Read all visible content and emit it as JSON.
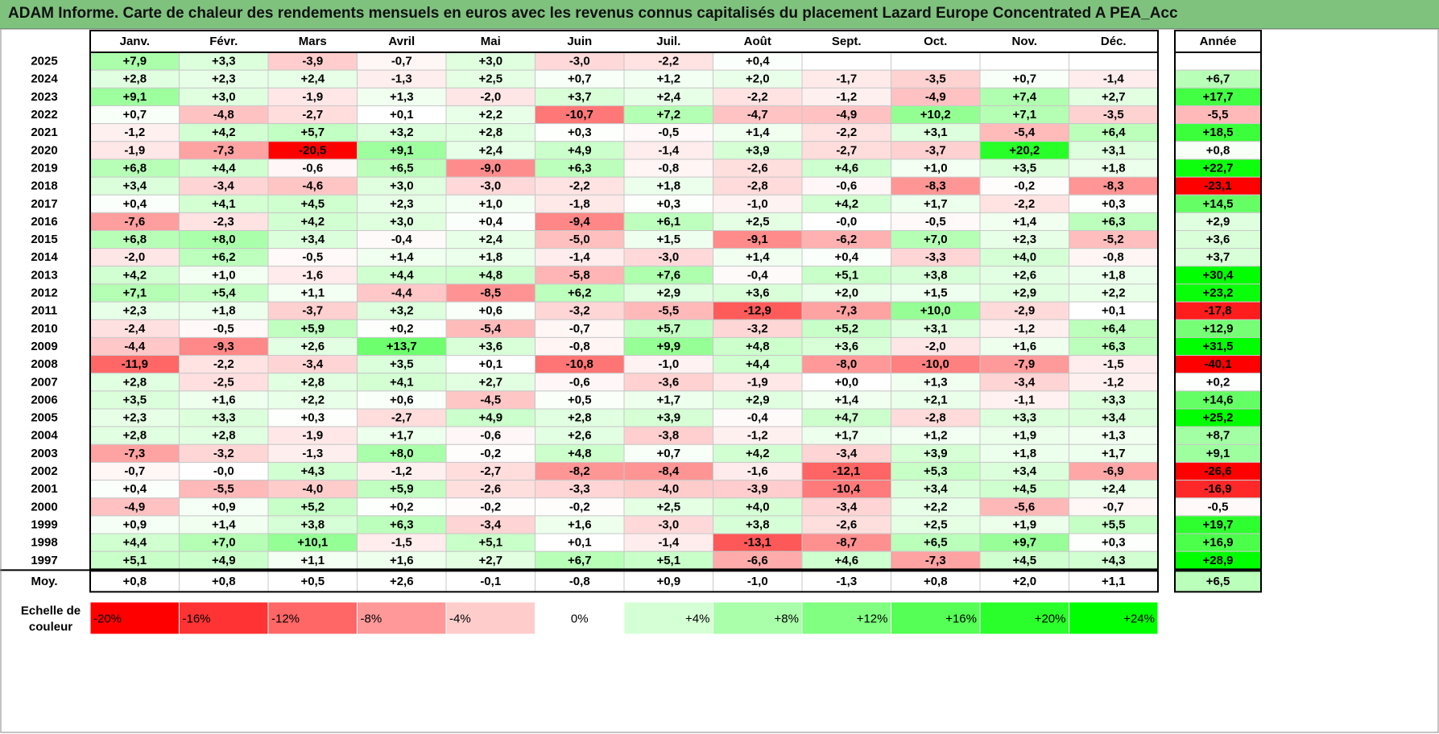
{
  "title": "ADAM Informe. Carte de chaleur des rendements mensuels en euros avec les revenus connus capitalisés du placement Lazard Europe Concentrated A PEA_Acc",
  "chart_data": {
    "type": "heatmap",
    "title": "ADAM Informe. Carte de chaleur des rendements mensuels en euros avec les revenus connus capitalisés du placement Lazard Europe Concentrated A PEA_Acc",
    "columns": [
      "Janv.",
      "Févr.",
      "Mars",
      "Avril",
      "Mai",
      "Juin",
      "Juil.",
      "Août",
      "Sept.",
      "Oct.",
      "Nov.",
      "Déc."
    ],
    "year_header": "Année",
    "rows": [
      {
        "year": "2025",
        "values": [
          "+7,9",
          "+3,3",
          "-3,9",
          "-0,7",
          "+3,0",
          "-3,0",
          "-2,2",
          "+0,4",
          "",
          "",
          "",
          ""
        ],
        "annual": ""
      },
      {
        "year": "2024",
        "values": [
          "+2,8",
          "+2,3",
          "+2,4",
          "-1,3",
          "+2,5",
          "+0,7",
          "+1,2",
          "+2,0",
          "-1,7",
          "-3,5",
          "+0,7",
          "-1,4"
        ],
        "annual": "+6,7"
      },
      {
        "year": "2023",
        "values": [
          "+9,1",
          "+3,0",
          "-1,9",
          "+1,3",
          "-2,0",
          "+3,7",
          "+2,4",
          "-2,2",
          "-1,2",
          "-4,9",
          "+7,4",
          "+2,7"
        ],
        "annual": "+17,7"
      },
      {
        "year": "2022",
        "values": [
          "+0,7",
          "-4,8",
          "-2,7",
          "+0,1",
          "+2,2",
          "-10,7",
          "+7,2",
          "-4,7",
          "-4,9",
          "+10,2",
          "+7,1",
          "-3,5"
        ],
        "annual": "-5,5"
      },
      {
        "year": "2021",
        "values": [
          "-1,2",
          "+4,2",
          "+5,7",
          "+3,2",
          "+2,8",
          "+0,3",
          "-0,5",
          "+1,4",
          "-2,2",
          "+3,1",
          "-5,4",
          "+6,4"
        ],
        "annual": "+18,5"
      },
      {
        "year": "2020",
        "values": [
          "-1,9",
          "-7,3",
          "-20,5",
          "+9,1",
          "+2,4",
          "+4,9",
          "-1,4",
          "+3,9",
          "-2,7",
          "-3,7",
          "+20,2",
          "+3,1"
        ],
        "annual": "+0,8"
      },
      {
        "year": "2019",
        "values": [
          "+6,8",
          "+4,4",
          "-0,6",
          "+6,5",
          "-9,0",
          "+6,3",
          "-0,8",
          "-2,6",
          "+4,6",
          "+1,0",
          "+3,5",
          "+1,8"
        ],
        "annual": "+22,7"
      },
      {
        "year": "2018",
        "values": [
          "+3,4",
          "-3,4",
          "-4,6",
          "+3,0",
          "-3,0",
          "-2,2",
          "+1,8",
          "-2,8",
          "-0,6",
          "-8,3",
          "-0,2",
          "-8,3"
        ],
        "annual": "-23,1"
      },
      {
        "year": "2017",
        "values": [
          "+0,4",
          "+4,1",
          "+4,5",
          "+2,3",
          "+1,0",
          "-1,8",
          "+0,3",
          "-1,0",
          "+4,2",
          "+1,7",
          "-2,2",
          "+0,3"
        ],
        "annual": "+14,5"
      },
      {
        "year": "2016",
        "values": [
          "-7,6",
          "-2,3",
          "+4,2",
          "+3,0",
          "+0,4",
          "-9,4",
          "+6,1",
          "+2,5",
          "-0,0",
          "-0,5",
          "+1,4",
          "+6,3"
        ],
        "annual": "+2,9"
      },
      {
        "year": "2015",
        "values": [
          "+6,8",
          "+8,0",
          "+3,4",
          "-0,4",
          "+2,4",
          "-5,0",
          "+1,5",
          "-9,1",
          "-6,2",
          "+7,0",
          "+2,3",
          "-5,2"
        ],
        "annual": "+3,6"
      },
      {
        "year": "2014",
        "values": [
          "-2,0",
          "+6,2",
          "-0,5",
          "+1,4",
          "+1,8",
          "-1,4",
          "-3,0",
          "+1,4",
          "+0,4",
          "-3,3",
          "+4,0",
          "-0,8"
        ],
        "annual": "+3,7"
      },
      {
        "year": "2013",
        "values": [
          "+4,2",
          "+1,0",
          "-1,6",
          "+4,4",
          "+4,8",
          "-5,8",
          "+7,6",
          "-0,4",
          "+5,1",
          "+3,8",
          "+2,6",
          "+1,8"
        ],
        "annual": "+30,4"
      },
      {
        "year": "2012",
        "values": [
          "+7,1",
          "+5,4",
          "+1,1",
          "-4,4",
          "-8,5",
          "+6,2",
          "+2,9",
          "+3,6",
          "+2,0",
          "+1,5",
          "+2,9",
          "+2,2"
        ],
        "annual": "+23,2"
      },
      {
        "year": "2011",
        "values": [
          "+2,3",
          "+1,8",
          "-3,7",
          "+3,2",
          "+0,6",
          "-3,2",
          "-5,5",
          "-12,9",
          "-7,3",
          "+10,0",
          "-2,9",
          "+0,1"
        ],
        "annual": "-17,8"
      },
      {
        "year": "2010",
        "values": [
          "-2,4",
          "-0,5",
          "+5,9",
          "+0,2",
          "-5,4",
          "-0,7",
          "+5,7",
          "-3,2",
          "+5,2",
          "+3,1",
          "-1,2",
          "+6,4"
        ],
        "annual": "+12,9"
      },
      {
        "year": "2009",
        "values": [
          "-4,4",
          "-9,3",
          "+2,6",
          "+13,7",
          "+3,6",
          "-0,8",
          "+9,9",
          "+4,8",
          "+3,6",
          "-2,0",
          "+1,6",
          "+6,3"
        ],
        "annual": "+31,5"
      },
      {
        "year": "2008",
        "values": [
          "-11,9",
          "-2,2",
          "-3,4",
          "+3,5",
          "+0,1",
          "-10,8",
          "-1,0",
          "+4,4",
          "-8,0",
          "-10,0",
          "-7,9",
          "-1,5"
        ],
        "annual": "-40,1"
      },
      {
        "year": "2007",
        "values": [
          "+2,8",
          "-2,5",
          "+2,8",
          "+4,1",
          "+2,7",
          "-0,6",
          "-3,6",
          "-1,9",
          "+0,0",
          "+1,3",
          "-3,4",
          "-1,2"
        ],
        "annual": "+0,2"
      },
      {
        "year": "2006",
        "values": [
          "+3,5",
          "+1,6",
          "+2,2",
          "+0,6",
          "-4,5",
          "+0,5",
          "+1,7",
          "+2,9",
          "+1,4",
          "+2,1",
          "-1,1",
          "+3,3"
        ],
        "annual": "+14,6"
      },
      {
        "year": "2005",
        "values": [
          "+2,3",
          "+3,3",
          "+0,3",
          "-2,7",
          "+4,9",
          "+2,8",
          "+3,9",
          "-0,4",
          "+4,7",
          "-2,8",
          "+3,3",
          "+3,4"
        ],
        "annual": "+25,2"
      },
      {
        "year": "2004",
        "values": [
          "+2,8",
          "+2,8",
          "-1,9",
          "+1,7",
          "-0,6",
          "+2,6",
          "-3,8",
          "-1,2",
          "+1,7",
          "+1,2",
          "+1,9",
          "+1,3"
        ],
        "annual": "+8,7"
      },
      {
        "year": "2003",
        "values": [
          "-7,3",
          "-3,2",
          "-1,3",
          "+8,0",
          "-0,2",
          "+4,8",
          "+0,7",
          "+4,2",
          "-3,4",
          "+3,9",
          "+1,8",
          "+1,7"
        ],
        "annual": "+9,1"
      },
      {
        "year": "2002",
        "values": [
          "-0,7",
          "-0,0",
          "+4,3",
          "-1,2",
          "-2,7",
          "-8,2",
          "-8,4",
          "-1,6",
          "-12,1",
          "+5,3",
          "+3,4",
          "-6,9"
        ],
        "annual": "-26,6"
      },
      {
        "year": "2001",
        "values": [
          "+0,4",
          "-5,5",
          "-4,0",
          "+5,9",
          "-2,6",
          "-3,3",
          "-4,0",
          "-3,9",
          "-10,4",
          "+3,4",
          "+4,5",
          "+2,4"
        ],
        "annual": "-16,9"
      },
      {
        "year": "2000",
        "values": [
          "-4,9",
          "+0,9",
          "+5,2",
          "+0,2",
          "-0,2",
          "-0,2",
          "+2,5",
          "+4,0",
          "-3,4",
          "+2,2",
          "-5,6",
          "-0,7"
        ],
        "annual": "-0,5"
      },
      {
        "year": "1999",
        "values": [
          "+0,9",
          "+1,4",
          "+3,8",
          "+6,3",
          "-3,4",
          "+1,6",
          "-3,0",
          "+3,8",
          "-2,6",
          "+2,5",
          "+1,9",
          "+5,5"
        ],
        "annual": "+19,7"
      },
      {
        "year": "1998",
        "values": [
          "+4,4",
          "+7,0",
          "+10,1",
          "-1,5",
          "+5,1",
          "+0,1",
          "-1,4",
          "-13,1",
          "-8,7",
          "+6,5",
          "+9,7",
          "+0,3"
        ],
        "annual": "+16,9"
      },
      {
        "year": "1997",
        "values": [
          "+5,1",
          "+4,9",
          "+1,1",
          "+1,6",
          "+2,7",
          "+6,7",
          "+5,1",
          "-6,6",
          "+4,6",
          "-7,3",
          "+4,5",
          "+4,3"
        ],
        "annual": "+28,9"
      }
    ],
    "average": {
      "label": "Moy.",
      "values": [
        "+0,8",
        "+0,8",
        "+0,5",
        "+2,6",
        "-0,1",
        "-0,8",
        "+0,9",
        "-1,0",
        "-1,3",
        "+0,8",
        "+2,0",
        "+1,1"
      ],
      "annual": "+6,5"
    },
    "scale": {
      "label_line1": "Echelle de",
      "label_line2": "couleur",
      "steps": [
        {
          "label": "-20%",
          "value": -20,
          "color": "#ff0000"
        },
        {
          "label": "-16%",
          "value": -16,
          "color": "#ff3333"
        },
        {
          "label": "-12%",
          "value": -12,
          "color": "#ff6666"
        },
        {
          "label": "-8%",
          "value": -8,
          "color": "#ff9999"
        },
        {
          "label": "-4%",
          "value": -4,
          "color": "#ffcccc"
        },
        {
          "label": "0%",
          "value": 0,
          "color": "#ffffff"
        },
        {
          "label": "+4%",
          "value": 4,
          "color": "#d5ffd5"
        },
        {
          "label": "+8%",
          "value": 8,
          "color": "#aaffaa"
        },
        {
          "label": "+12%",
          "value": 12,
          "color": "#80ff80"
        },
        {
          "label": "+16%",
          "value": 16,
          "color": "#55ff55"
        },
        {
          "label": "+20%",
          "value": 20,
          "color": "#2bff2b"
        },
        {
          "label": "+24%",
          "value": 24,
          "color": "#00ff00"
        }
      ]
    },
    "colors": {
      "negative_max": "#ff0000",
      "neutral": "#ffffff",
      "positive_max": "#00ff00",
      "title_bar": "#7ec27e"
    }
  }
}
